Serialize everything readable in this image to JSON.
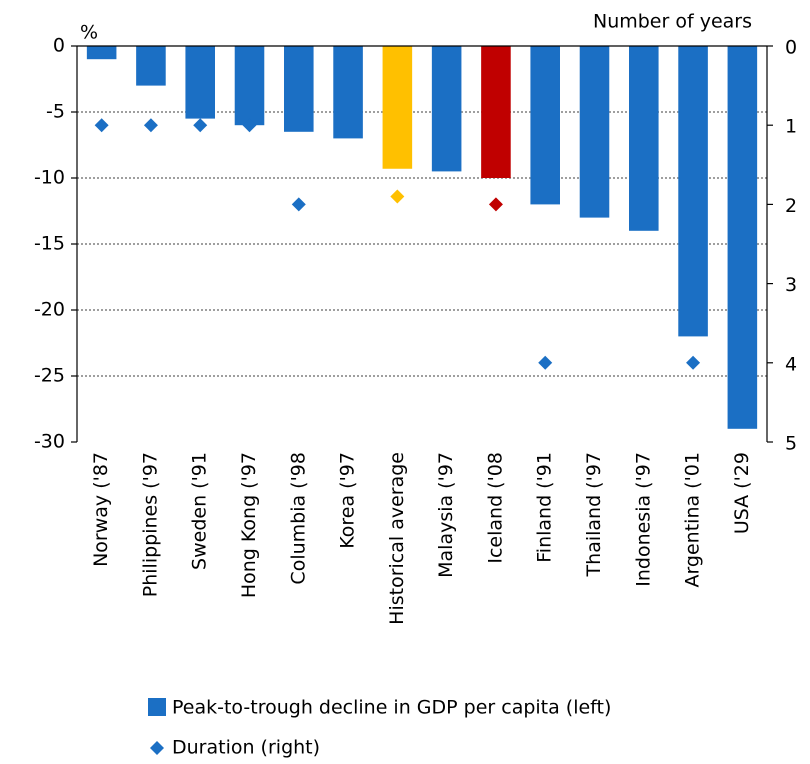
{
  "chart_data": {
    "type": "bar",
    "y_label": "%",
    "y2_label": "Number of years",
    "categories": [
      "Norway ('87",
      "Philippines ('97",
      "Sweden ('91",
      "Hong Kong ('97",
      "Columbia ('98",
      "Korea ('97",
      "Historical average",
      "Malaysia ('97",
      "Iceland ('08",
      "Finland ('91",
      "Thailand ('97",
      "Indonesia ('97",
      "Argentina ('01",
      "USA ('29"
    ],
    "series": [
      {
        "name": "Peak-to-trough decline in GDP per capita (left)",
        "color": "#1b6fc4",
        "colors": [
          "#1b6fc4",
          "#1b6fc4",
          "#1b6fc4",
          "#1b6fc4",
          "#1b6fc4",
          "#1b6fc4",
          "#ffc000",
          "#1b6fc4",
          "#c00000",
          "#1b6fc4",
          "#1b6fc4",
          "#1b6fc4",
          "#1b6fc4",
          "#1b6fc4"
        ],
        "values": [
          -1,
          -3,
          -5.5,
          -6,
          -6.5,
          -7,
          -9.3,
          -9.5,
          -10,
          -12,
          -13,
          -14,
          -22,
          -29
        ]
      },
      {
        "name": "Duration (right)",
        "type": "scatter",
        "axis": "y2",
        "color": "#1b6fc4",
        "colors": [
          "#1b6fc4",
          "#1b6fc4",
          "#1b6fc4",
          "#1b6fc4",
          "#1b6fc4",
          "#1b6fc4",
          "#ffc000",
          "#1b6fc4",
          "#c00000",
          "#1b6fc4",
          "#1b6fc4",
          "#1b6fc4",
          "#1b6fc4",
          "#1b6fc4"
        ],
        "values": [
          1,
          1,
          1,
          1,
          2,
          null,
          1.9,
          null,
          2,
          4,
          null,
          null,
          4,
          null
        ]
      }
    ],
    "ylim": [
      -30,
      0
    ],
    "yticks": [
      0,
      -5,
      -10,
      -15,
      -20,
      -25,
      -30
    ],
    "y2lim": [
      5,
      0
    ],
    "y2ticks": [
      0,
      1,
      2,
      3,
      4,
      5
    ],
    "grid": true
  }
}
